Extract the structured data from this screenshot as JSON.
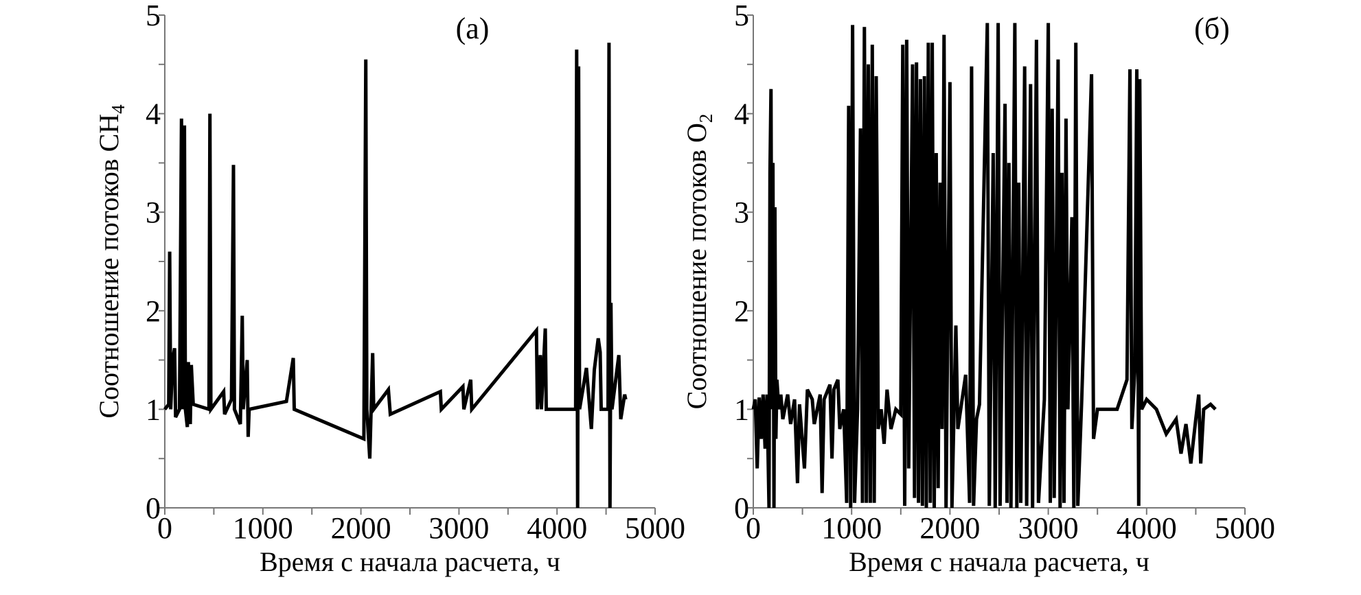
{
  "chart_data": [
    {
      "type": "line",
      "panel_label": "(а)",
      "xlabel": "Время с начала расчета, ч",
      "ylabel": "Соотношение потоков CH",
      "ylabel_subscript": "4",
      "xlim": [
        0,
        5000
      ],
      "ylim": [
        0,
        5
      ],
      "xticks": [
        "0",
        "1000",
        "2000",
        "3000",
        "4000",
        "5000"
      ],
      "yticks": [
        "0",
        "1",
        "2",
        "3",
        "4",
        "5"
      ],
      "grid": false,
      "line_color": "#000000",
      "series": [
        {
          "points": [
            [
              0,
              1.0
            ],
            [
              40,
              1.05
            ],
            [
              50,
              2.6
            ],
            [
              60,
              1.0
            ],
            [
              80,
              1.5
            ],
            [
              100,
              1.62
            ],
            [
              110,
              0.92
            ],
            [
              150,
              1.0
            ],
            [
              170,
              3.95
            ],
            [
              185,
              1.0
            ],
            [
              200,
              3.88
            ],
            [
              210,
              1.0
            ],
            [
              230,
              0.82
            ],
            [
              240,
              1.48
            ],
            [
              250,
              1.0
            ],
            [
              260,
              0.85
            ],
            [
              270,
              1.45
            ],
            [
              290,
              1.05
            ],
            [
              450,
              1.0
            ],
            [
              460,
              4.0
            ],
            [
              470,
              1.0
            ],
            [
              600,
              1.18
            ],
            [
              610,
              0.95
            ],
            [
              680,
              1.1
            ],
            [
              700,
              3.48
            ],
            [
              710,
              1.0
            ],
            [
              770,
              0.85
            ],
            [
              790,
              1.95
            ],
            [
              800,
              1.0
            ],
            [
              840,
              1.5
            ],
            [
              850,
              0.72
            ],
            [
              860,
              1.0
            ],
            [
              1240,
              1.08
            ],
            [
              1310,
              1.52
            ],
            [
              1320,
              1.0
            ],
            [
              2030,
              0.7
            ],
            [
              2050,
              4.55
            ],
            [
              2060,
              1.0
            ],
            [
              2090,
              0.5
            ],
            [
              2120,
              1.57
            ],
            [
              2130,
              1.0
            ],
            [
              2280,
              1.2
            ],
            [
              2300,
              0.95
            ],
            [
              2810,
              1.18
            ],
            [
              2820,
              1.0
            ],
            [
              3040,
              1.23
            ],
            [
              3050,
              1.0
            ],
            [
              3120,
              1.3
            ],
            [
              3130,
              1.0
            ],
            [
              3790,
              1.8
            ],
            [
              3800,
              1.0
            ],
            [
              3830,
              1.55
            ],
            [
              3840,
              1.0
            ],
            [
              3880,
              1.82
            ],
            [
              3890,
              1.0
            ],
            [
              4190,
              1.0
            ],
            [
              4200,
              4.65
            ],
            [
              4210,
              0.0
            ],
            [
              4220,
              4.48
            ],
            [
              4230,
              1.0
            ],
            [
              4300,
              1.42
            ],
            [
              4350,
              0.8
            ],
            [
              4380,
              1.4
            ],
            [
              4420,
              1.72
            ],
            [
              4440,
              1.58
            ],
            [
              4450,
              1.0
            ],
            [
              4520,
              1.0
            ],
            [
              4530,
              4.72
            ],
            [
              4540,
              0.0
            ],
            [
              4550,
              2.08
            ],
            [
              4560,
              1.0
            ],
            [
              4630,
              1.55
            ],
            [
              4650,
              0.9
            ],
            [
              4690,
              1.15
            ],
            [
              4700,
              1.1
            ]
          ]
        }
      ]
    },
    {
      "type": "line",
      "panel_label": "(б)",
      "xlabel": "Время с начала расчета, ч",
      "ylabel": "Соотношение потоков O",
      "ylabel_subscript": "2",
      "xlim": [
        0,
        5000
      ],
      "ylim": [
        0,
        5
      ],
      "xticks": [
        "0",
        "1000",
        "2000",
        "3000",
        "4000",
        "5000"
      ],
      "yticks": [
        "0",
        "1",
        "2",
        "3",
        "4",
        "5"
      ],
      "grid": false,
      "line_color": "#000000",
      "series": [
        {
          "points": [
            [
              0,
              1.0
            ],
            [
              20,
              1.1
            ],
            [
              40,
              0.4
            ],
            [
              60,
              1.12
            ],
            [
              80,
              0.7
            ],
            [
              100,
              1.15
            ],
            [
              120,
              0.6
            ],
            [
              140,
              1.15
            ],
            [
              160,
              0.0
            ],
            [
              170,
              3.4
            ],
            [
              180,
              4.25
            ],
            [
              190,
              1.0
            ],
            [
              200,
              3.5
            ],
            [
              210,
              0.0
            ],
            [
              220,
              3.05
            ],
            [
              230,
              0.7
            ],
            [
              240,
              1.3
            ],
            [
              260,
              1.0
            ],
            [
              280,
              1.15
            ],
            [
              300,
              0.9
            ],
            [
              350,
              1.15
            ],
            [
              380,
              0.85
            ],
            [
              420,
              1.1
            ],
            [
              450,
              0.25
            ],
            [
              470,
              1.05
            ],
            [
              520,
              0.4
            ],
            [
              550,
              1.2
            ],
            [
              600,
              1.1
            ],
            [
              620,
              0.85
            ],
            [
              680,
              1.15
            ],
            [
              700,
              0.15
            ],
            [
              720,
              1.1
            ],
            [
              780,
              1.25
            ],
            [
              800,
              0.5
            ],
            [
              820,
              1.2
            ],
            [
              860,
              1.3
            ],
            [
              880,
              0.8
            ],
            [
              920,
              1.0
            ],
            [
              950,
              0.05
            ],
            [
              970,
              4.08
            ],
            [
              990,
              0.0
            ],
            [
              1010,
              4.9
            ],
            [
              1030,
              0.05
            ],
            [
              1060,
              1.0
            ],
            [
              1090,
              3.85
            ],
            [
              1110,
              0.05
            ],
            [
              1130,
              4.88
            ],
            [
              1150,
              0.05
            ],
            [
              1170,
              4.5
            ],
            [
              1190,
              0.05
            ],
            [
              1210,
              4.7
            ],
            [
              1230,
              0.05
            ],
            [
              1250,
              4.38
            ],
            [
              1260,
              3.05
            ],
            [
              1270,
              0.8
            ],
            [
              1300,
              1.0
            ],
            [
              1330,
              0.65
            ],
            [
              1360,
              1.2
            ],
            [
              1400,
              0.8
            ],
            [
              1450,
              1.0
            ],
            [
              1500,
              0.95
            ],
            [
              1520,
              4.7
            ],
            [
              1540,
              0.02
            ],
            [
              1560,
              4.75
            ],
            [
              1580,
              0.4
            ],
            [
              1620,
              4.5
            ],
            [
              1640,
              0.1
            ],
            [
              1660,
              4.52
            ],
            [
              1680,
              0.05
            ],
            [
              1700,
              4.35
            ],
            [
              1720,
              0.02
            ],
            [
              1740,
              4.38
            ],
            [
              1760,
              0.0
            ],
            [
              1780,
              4.72
            ],
            [
              1800,
              0.05
            ],
            [
              1820,
              4.72
            ],
            [
              1840,
              0.0
            ],
            [
              1860,
              3.6
            ],
            [
              1880,
              0.2
            ],
            [
              1900,
              3.3
            ],
            [
              1920,
              0.8
            ],
            [
              1940,
              4.8
            ],
            [
              1960,
              0.0
            ],
            [
              2000,
              4.32
            ],
            [
              2020,
              0.0
            ],
            [
              2060,
              1.85
            ],
            [
              2080,
              0.8
            ],
            [
              2160,
              1.35
            ],
            [
              2200,
              0.05
            ],
            [
              2220,
              4.48
            ],
            [
              2240,
              0.02
            ],
            [
              2270,
              0.9
            ],
            [
              2300,
              1.05
            ],
            [
              2380,
              4.92
            ],
            [
              2400,
              0.02
            ],
            [
              2440,
              3.6
            ],
            [
              2460,
              0.0
            ],
            [
              2490,
              4.92
            ],
            [
              2510,
              0.02
            ],
            [
              2560,
              4.1
            ],
            [
              2580,
              0.05
            ],
            [
              2600,
              3.5
            ],
            [
              2620,
              0.0
            ],
            [
              2660,
              4.92
            ],
            [
              2680,
              0.0
            ],
            [
              2700,
              3.3
            ],
            [
              2720,
              0.05
            ],
            [
              2760,
              4.48
            ],
            [
              2780,
              0.02
            ],
            [
              2820,
              4.3
            ],
            [
              2840,
              0.0
            ],
            [
              2880,
              4.75
            ],
            [
              2900,
              0.05
            ],
            [
              2960,
              1.1
            ],
            [
              3000,
              4.92
            ],
            [
              3020,
              0.05
            ],
            [
              3040,
              4.05
            ],
            [
              3060,
              0.1
            ],
            [
              3100,
              4.55
            ],
            [
              3120,
              0.0
            ],
            [
              3140,
              3.4
            ],
            [
              3160,
              0.05
            ],
            [
              3180,
              3.95
            ],
            [
              3200,
              1.0
            ],
            [
              3240,
              2.95
            ],
            [
              3260,
              0.0
            ],
            [
              3280,
              4.72
            ],
            [
              3300,
              0.02
            ],
            [
              3340,
              1.1
            ],
            [
              3440,
              4.4
            ],
            [
              3460,
              0.7
            ],
            [
              3500,
              1.0
            ],
            [
              3700,
              1.0
            ],
            [
              3800,
              1.3
            ],
            [
              3830,
              4.45
            ],
            [
              3850,
              0.8
            ],
            [
              3880,
              1.4
            ],
            [
              3900,
              4.45
            ],
            [
              3920,
              0.02
            ],
            [
              3930,
              4.35
            ],
            [
              3950,
              1.0
            ],
            [
              4000,
              1.1
            ],
            [
              4100,
              1.0
            ],
            [
              4200,
              0.75
            ],
            [
              4300,
              0.9
            ],
            [
              4350,
              0.55
            ],
            [
              4400,
              0.85
            ],
            [
              4450,
              0.45
            ],
            [
              4500,
              0.9
            ],
            [
              4530,
              1.15
            ],
            [
              4550,
              0.45
            ],
            [
              4580,
              1.0
            ],
            [
              4650,
              1.05
            ],
            [
              4700,
              1.0
            ]
          ]
        }
      ]
    }
  ]
}
